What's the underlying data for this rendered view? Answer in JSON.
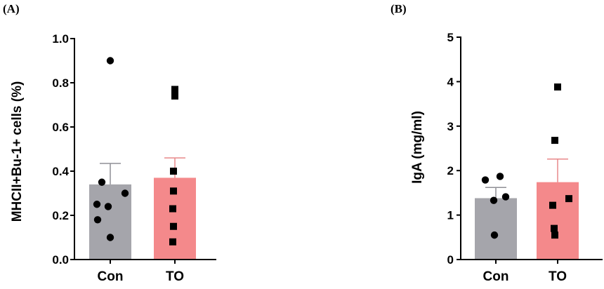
{
  "chart_data": [
    {
      "type": "bar",
      "panel_label": "(A)",
      "categories": [
        "Con",
        "TO"
      ],
      "ylabel": "MHCII+Bu-1+ cells (%)",
      "ylim": [
        0,
        1.0
      ],
      "yticks": [
        "0.0",
        "0.2",
        "0.4",
        "0.6",
        "0.8",
        "1.0"
      ],
      "ytick_values": [
        0,
        0.2,
        0.4,
        0.6,
        0.8,
        1.0
      ],
      "bar_colors": [
        "#a5a5ab",
        "#f4898b"
      ],
      "error_colors": [
        "#8f8f95",
        "#e8888a"
      ],
      "marker_shapes": [
        "circle",
        "square"
      ],
      "means": [
        0.34,
        0.37
      ],
      "sem": [
        0.095,
        0.09
      ],
      "points": [
        [
          0.9,
          0.35,
          0.3,
          0.25,
          0.24,
          0.18,
          0.1
        ],
        [
          0.77,
          0.74,
          0.4,
          0.31,
          0.23,
          0.15,
          0.08
        ]
      ]
    },
    {
      "type": "bar",
      "panel_label": "(B)",
      "categories": [
        "Con",
        "TO"
      ],
      "ylabel": "IgA (mg/ml)",
      "ylim": [
        0,
        5
      ],
      "yticks": [
        "0",
        "1",
        "2",
        "3",
        "4",
        "5"
      ],
      "ytick_values": [
        0,
        1,
        2,
        3,
        4,
        5
      ],
      "bar_colors": [
        "#a5a5ab",
        "#f4898b"
      ],
      "error_colors": [
        "#8f8f95",
        "#e8888a"
      ],
      "marker_shapes": [
        "circle",
        "square"
      ],
      "means": [
        1.38,
        1.74
      ],
      "sem": [
        0.24,
        0.52
      ],
      "points": [
        [
          1.87,
          1.79,
          1.41,
          1.33,
          0.55
        ],
        [
          3.88,
          2.68,
          1.37,
          1.22,
          0.7,
          0.55
        ]
      ]
    }
  ]
}
